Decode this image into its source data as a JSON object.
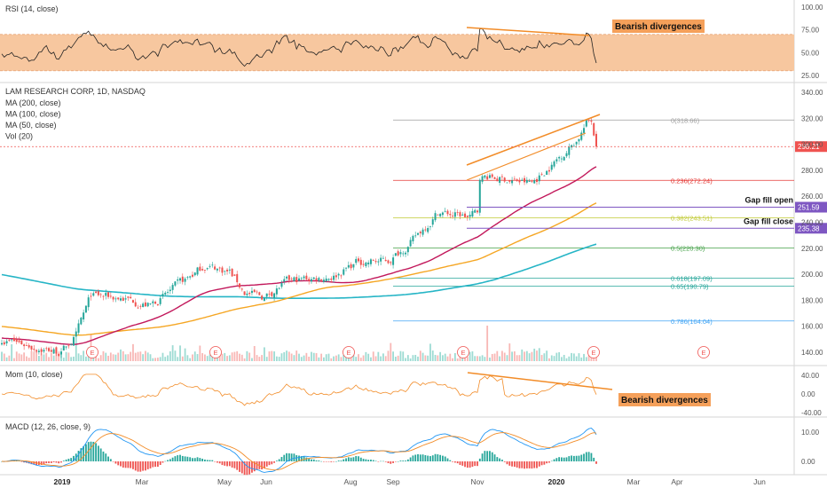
{
  "chart_data": [
    {
      "type": "line",
      "panel": "rsi",
      "indicator_label": "RSI (14, close)",
      "band": [
        30,
        70
      ],
      "band_color": "#f7c79f",
      "y_ticks": [
        "100.00",
        "75.00",
        "50.00",
        "25.00"
      ],
      "y_range": [
        25,
        100
      ],
      "annotation": "Bearish divergences"
    },
    {
      "type": "candlestick",
      "panel": "price",
      "title": "LAM RESEARCH CORP, 1D, NASDAQ",
      "legend": [
        "MA (200, close)",
        "MA (100, close)",
        "MA (50, close)",
        "Vol (20)"
      ],
      "y_range": [
        130,
        345
      ],
      "y_ticks": [
        "340.00",
        "320.00",
        "300.00",
        "280.00",
        "260.00",
        "240.00",
        "220.00",
        "200.00",
        "180.00",
        "160.00",
        "140.00"
      ],
      "last_price": "298.21",
      "last_price_value": 298.21,
      "fib_levels": [
        {
          "label": "0(318.66)",
          "value": 318.66,
          "color": "#9e9e9e"
        },
        {
          "label": "0.236(272.24)",
          "value": 272.24,
          "color": "#e53935"
        },
        {
          "label": "0.382(243.51)",
          "value": 243.51,
          "color": "#c0ca33"
        },
        {
          "label": "0.5(220.30)",
          "value": 220.3,
          "color": "#43a047"
        },
        {
          "label": "0.618(197.09)",
          "value": 197.09,
          "color": "#26a69a"
        },
        {
          "label": "0.65(190.79)",
          "value": 190.79,
          "color": "#26a69a"
        },
        {
          "label": "0.786(164.04)",
          "value": 164.04,
          "color": "#42a5f5"
        }
      ],
      "gap_lines": [
        {
          "label": "Gap fill open",
          "value": 251.59,
          "badge": "251.59"
        },
        {
          "label": "Gap fill close",
          "value": 235.38,
          "badge": "235.38"
        }
      ],
      "colors": {
        "ma200": "#26b5c6",
        "ma100": "#f5a623",
        "ma50": "#c2185b",
        "up": "#26a69a",
        "down": "#ef5350",
        "trendline": "#f28c28",
        "gap": "#7e57c2"
      }
    },
    {
      "type": "line",
      "panel": "momentum",
      "indicator_label": "Mom (10, close)",
      "y_ticks": [
        "40.00",
        "0.00",
        "-40.00"
      ],
      "y_range": [
        -45,
        45
      ],
      "annotation": "Bearish divergences"
    },
    {
      "type": "line",
      "panel": "macd",
      "indicator_label": "MACD (12, 26, close, 9)",
      "y_ticks": [
        "10.00",
        "0.00"
      ],
      "y_range": [
        -5,
        14
      ]
    }
  ],
  "x_axis": {
    "labels": [
      "2019",
      "Mar",
      "May",
      "Jun",
      "Aug",
      "Sep",
      "Nov",
      "2020",
      "Mar",
      "Apr",
      "Jun"
    ],
    "bold": [
      "2019",
      "2020"
    ]
  },
  "earnings_marker": "E"
}
